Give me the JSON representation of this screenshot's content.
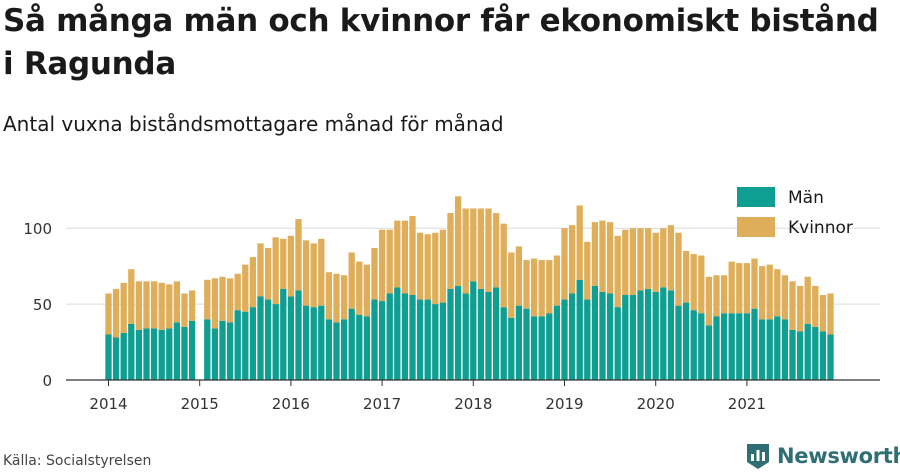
{
  "title": "Så många män och kvinnor får ekonomiskt bistånd i Ragunda",
  "subtitle": "Antal vuxna biståndsmottagare månad för månad",
  "source": "Källa: Socialstyrelsen",
  "brand": {
    "name": "Newsworthy",
    "logo_icon": "newsworthy-logo-icon",
    "color": "#2f6f73"
  },
  "chart_data": {
    "type": "bar",
    "stacked": true,
    "x_start": "2014-01",
    "x_tick_labels": [
      "2014",
      "2015",
      "2016",
      "2017",
      "2018",
      "2019",
      "2020",
      "2021"
    ],
    "y_ticks": [
      0,
      50,
      100
    ],
    "ylim": [
      0,
      125
    ],
    "grid": "horizontal",
    "legend_position": "top-right",
    "series": [
      {
        "name": "Män",
        "color": "#0f9e92",
        "values": [
          30,
          28,
          31,
          37,
          33,
          34,
          34,
          33,
          34,
          38,
          35,
          39,
          null,
          40,
          34,
          39,
          38,
          46,
          45,
          48,
          55,
          53,
          50,
          60,
          55,
          59,
          49,
          48,
          49,
          40,
          38,
          40,
          47,
          43,
          42,
          53,
          52,
          57,
          61,
          57,
          56,
          53,
          53,
          50,
          51,
          60,
          62,
          57,
          65,
          60,
          58,
          61,
          48,
          41,
          49,
          47,
          42,
          42,
          44,
          49,
          53,
          57,
          66,
          53,
          62,
          58,
          57,
          48,
          56,
          56,
          59,
          60,
          58,
          61,
          59,
          49,
          51,
          46,
          44,
          36,
          42,
          44,
          44,
          44,
          44,
          47,
          40,
          40,
          42,
          40,
          33,
          32,
          37,
          35,
          32,
          30
        ],
        "series_color_note": ""
      },
      {
        "name": "Kvinnor",
        "color": "#deae5a",
        "values": [
          27,
          32,
          33,
          36,
          32,
          31,
          31,
          31,
          29,
          27,
          22,
          20,
          null,
          26,
          33,
          29,
          29,
          24,
          31,
          33,
          35,
          34,
          44,
          33,
          40,
          47,
          43,
          42,
          44,
          31,
          32,
          29,
          37,
          35,
          34,
          34,
          47,
          42,
          44,
          48,
          52,
          44,
          43,
          47,
          48,
          50,
          59,
          56,
          48,
          53,
          55,
          49,
          55,
          43,
          39,
          32,
          38,
          37,
          35,
          33,
          47,
          45,
          49,
          38,
          42,
          47,
          47,
          47,
          43,
          44,
          41,
          40,
          39,
          39,
          43,
          48,
          34,
          37,
          38,
          32,
          27,
          25,
          34,
          33,
          33,
          33,
          35,
          36,
          31,
          29,
          32,
          30,
          31,
          27,
          24,
          27
        ]
      }
    ]
  }
}
